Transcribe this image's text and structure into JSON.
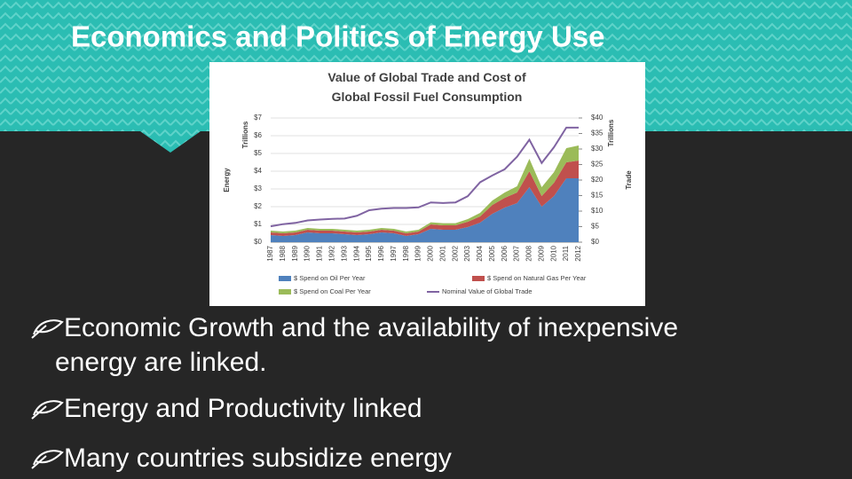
{
  "slide": {
    "title": "Economics and Politics of Energy Use",
    "bullets": [
      "Economic Growth and the availability of inexpensive",
      "energy are linked.",
      "Energy and Productivity linked",
      "Many countries subsidize energy"
    ]
  },
  "chart_data": {
    "type": "stacked-area",
    "title": "Value of Global Trade and Cost of Global Fossil Fuel Consumption",
    "ylabel": "Energy",
    "ylabel_unit": "Trillions",
    "y2label": "Trade",
    "y2label_unit": "Trillions",
    "categories": [
      "1987",
      "1988",
      "1989",
      "1990",
      "1991",
      "1992",
      "1993",
      "1994",
      "1995",
      "1996",
      "1997",
      "1998",
      "1999",
      "2000",
      "2001",
      "2002",
      "2003",
      "2004",
      "2005",
      "2006",
      "2007",
      "2008",
      "2009",
      "2010",
      "2011",
      "2012"
    ],
    "series": [
      {
        "name": "$ Spend on Oil Per Year",
        "color": "#4f81bd",
        "values": [
          0.4,
          0.35,
          0.4,
          0.55,
          0.5,
          0.5,
          0.45,
          0.4,
          0.45,
          0.55,
          0.5,
          0.35,
          0.45,
          0.75,
          0.7,
          0.7,
          0.85,
          1.1,
          1.6,
          1.95,
          2.2,
          3.1,
          2.0,
          2.6,
          3.6,
          3.6
        ]
      },
      {
        "name": "$ Spend on Natural Gas Per Year",
        "color": "#c0504d",
        "values": [
          0.15,
          0.15,
          0.15,
          0.15,
          0.15,
          0.15,
          0.15,
          0.15,
          0.15,
          0.15,
          0.15,
          0.15,
          0.15,
          0.25,
          0.25,
          0.25,
          0.3,
          0.35,
          0.5,
          0.55,
          0.6,
          0.9,
          0.6,
          0.75,
          0.9,
          1.0
        ]
      },
      {
        "name": "$ Spend on Coal Per Year",
        "color": "#9bbb59",
        "values": [
          0.1,
          0.1,
          0.1,
          0.1,
          0.1,
          0.1,
          0.1,
          0.1,
          0.1,
          0.1,
          0.1,
          0.1,
          0.1,
          0.12,
          0.12,
          0.12,
          0.15,
          0.2,
          0.25,
          0.3,
          0.35,
          0.7,
          0.5,
          0.6,
          0.8,
          0.85
        ]
      },
      {
        "name": "Nominal Value of Global Trade",
        "color": "#8064a2",
        "axis": "y2",
        "values": [
          5.1,
          5.8,
          6.2,
          7,
          7.3,
          7.5,
          7.6,
          8.5,
          10.3,
          10.8,
          11,
          11,
          11.2,
          12.8,
          12.6,
          12.8,
          14.8,
          19.3,
          21.5,
          23.5,
          27.5,
          33,
          25.5,
          30.6,
          36.9,
          36.9
        ]
      }
    ],
    "ylim": [
      0,
      7
    ],
    "yticks": [
      {
        "value": 0,
        "label": "$0"
      },
      {
        "value": 1,
        "label": "$1"
      },
      {
        "value": 2,
        "label": "$2"
      },
      {
        "value": 3,
        "label": "$3"
      },
      {
        "value": 4,
        "label": "$4"
      },
      {
        "value": 5,
        "label": "$5"
      },
      {
        "value": 6,
        "label": "$6"
      },
      {
        "value": 7,
        "label": "$7"
      }
    ],
    "y2lim": [
      0,
      40
    ],
    "y2ticks": [
      {
        "value": 0,
        "label": "$0"
      },
      {
        "value": 5,
        "label": "$5"
      },
      {
        "value": 10,
        "label": "$10"
      },
      {
        "value": 15,
        "label": "$15"
      },
      {
        "value": 20,
        "label": "$20"
      },
      {
        "value": 25,
        "label": "$25"
      },
      {
        "value": 30,
        "label": "$30"
      },
      {
        "value": 35,
        "label": "$35"
      },
      {
        "value": 40,
        "label": "$40"
      }
    ],
    "grid": true
  }
}
